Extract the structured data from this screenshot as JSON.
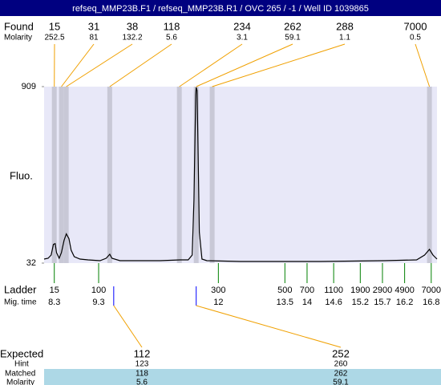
{
  "title": "refseq_MMP23B.F1 / refseq_MMP23B.R1 / OVC 265 / -1 / Well ID 1039865",
  "found": {
    "label": "Found",
    "molarity_label": "Molarity",
    "peaks": [
      {
        "size": 15,
        "molarity": 252.5,
        "time": 8.3
      },
      {
        "size": 31,
        "molarity": 81,
        "time": 8.46
      },
      {
        "size": 38,
        "molarity": 132.2,
        "time": 8.57
      },
      {
        "size": 118,
        "molarity": 5.6,
        "time": 9.55
      },
      {
        "size": 234,
        "molarity": 3.1,
        "time": 11.12
      },
      {
        "size": 262,
        "molarity": 59.1,
        "time": 11.5
      },
      {
        "size": 288,
        "molarity": 1.1,
        "time": 11.86
      },
      {
        "size": 7000,
        "molarity": 0.5,
        "time": 16.76
      }
    ]
  },
  "chart_data": {
    "type": "line",
    "ylabel": "Fluo.",
    "color": "#000000",
    "x": [
      8.07,
      8.16,
      8.23,
      8.28,
      8.32,
      8.35,
      8.41,
      8.46,
      8.52,
      8.57,
      8.63,
      8.68,
      8.75,
      8.88,
      9.06,
      9.33,
      9.47,
      9.55,
      9.6,
      9.78,
      10.69,
      11.14,
      11.32,
      11.41,
      11.45,
      11.49,
      11.5,
      11.52,
      11.54,
      11.57,
      11.63,
      11.74,
      12.5,
      14.3,
      15.75,
      16.47,
      16.65,
      16.76,
      16.84,
      16.93
    ],
    "values": [
      52,
      56,
      72,
      125,
      129,
      84,
      56,
      84,
      145,
      177,
      153,
      96,
      64,
      52,
      48,
      44,
      56,
      76,
      56,
      44,
      44,
      48,
      48,
      72,
      346,
      869,
      905,
      889,
      627,
      185,
      52,
      44,
      40,
      40,
      44,
      48,
      72,
      100,
      72,
      52
    ],
    "xlim": [
      8.07,
      16.93
    ],
    "ylim": [
      32,
      909
    ],
    "yticks": [
      32,
      909
    ]
  },
  "ladder": {
    "label": "Ladder",
    "time_label": "Mig. time",
    "sizes": [
      15,
      100,
      300,
      500,
      700,
      1100,
      1900,
      2900,
      4900,
      7000
    ],
    "times": [
      8.3,
      9.3,
      12,
      13.5,
      14,
      14.6,
      15.2,
      15.7,
      16.2,
      16.8
    ]
  },
  "expected": {
    "label": "Expected",
    "hint_label": "Hint",
    "matched_label": "Matched",
    "molarity_label": "Molarity",
    "peaks": [
      {
        "size": 112,
        "hint": 123,
        "matched": 118,
        "molarity": 5.6,
        "time": 9.64
      },
      {
        "size": 252,
        "hint": 260,
        "matched": 262,
        "molarity": 59.1,
        "time": 11.5
      }
    ]
  }
}
